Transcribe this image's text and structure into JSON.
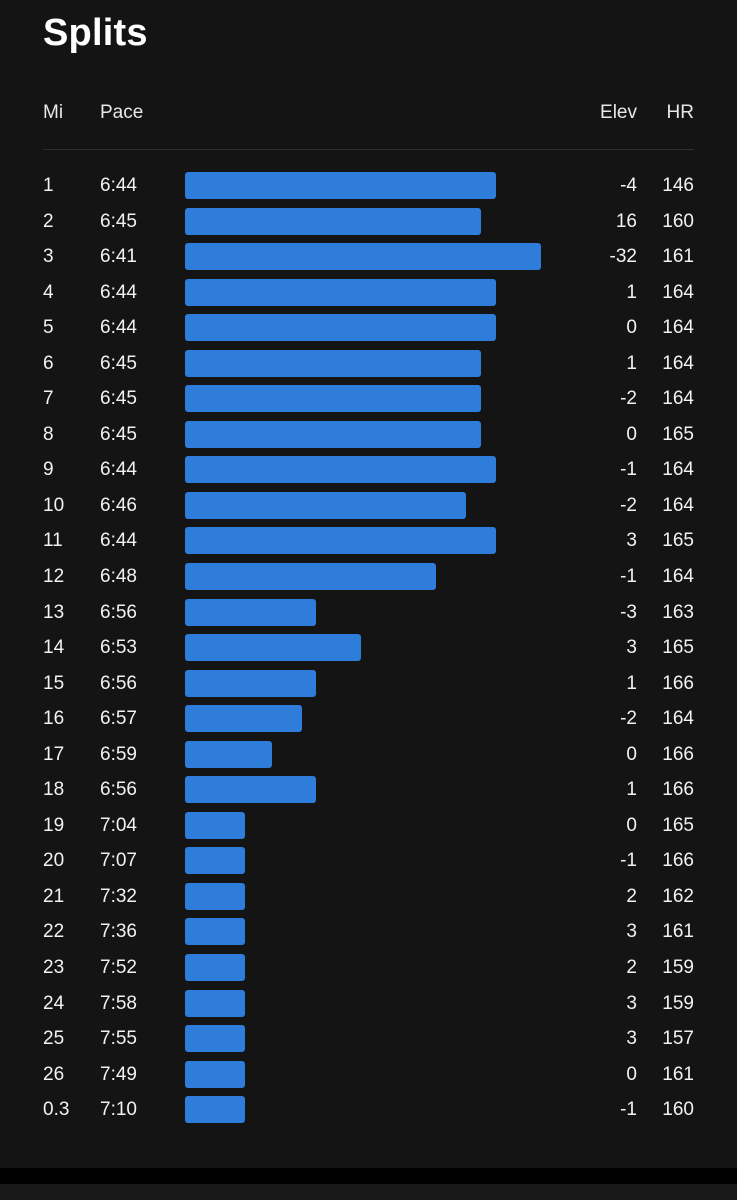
{
  "title": "Splits",
  "columns": {
    "mi": "Mi",
    "pace": "Pace",
    "elev": "Elev",
    "hr": "HR"
  },
  "colors": {
    "background": "#141414",
    "bar": "#2f7ddb",
    "text": "#ffffff"
  },
  "splits": [
    {
      "mi": "1",
      "pace": "6:44",
      "elev": "-4",
      "hr": "146"
    },
    {
      "mi": "2",
      "pace": "6:45",
      "elev": "16",
      "hr": "160"
    },
    {
      "mi": "3",
      "pace": "6:41",
      "elev": "-32",
      "hr": "161"
    },
    {
      "mi": "4",
      "pace": "6:44",
      "elev": "1",
      "hr": "164"
    },
    {
      "mi": "5",
      "pace": "6:44",
      "elev": "0",
      "hr": "164"
    },
    {
      "mi": "6",
      "pace": "6:45",
      "elev": "1",
      "hr": "164"
    },
    {
      "mi": "7",
      "pace": "6:45",
      "elev": "-2",
      "hr": "164"
    },
    {
      "mi": "8",
      "pace": "6:45",
      "elev": "0",
      "hr": "165"
    },
    {
      "mi": "9",
      "pace": "6:44",
      "elev": "-1",
      "hr": "164"
    },
    {
      "mi": "10",
      "pace": "6:46",
      "elev": "-2",
      "hr": "164"
    },
    {
      "mi": "11",
      "pace": "6:44",
      "elev": "3",
      "hr": "165"
    },
    {
      "mi": "12",
      "pace": "6:48",
      "elev": "-1",
      "hr": "164"
    },
    {
      "mi": "13",
      "pace": "6:56",
      "elev": "-3",
      "hr": "163"
    },
    {
      "mi": "14",
      "pace": "6:53",
      "elev": "3",
      "hr": "165"
    },
    {
      "mi": "15",
      "pace": "6:56",
      "elev": "1",
      "hr": "166"
    },
    {
      "mi": "16",
      "pace": "6:57",
      "elev": "-2",
      "hr": "164"
    },
    {
      "mi": "17",
      "pace": "6:59",
      "elev": "0",
      "hr": "166"
    },
    {
      "mi": "18",
      "pace": "6:56",
      "elev": "1",
      "hr": "166"
    },
    {
      "mi": "19",
      "pace": "7:04",
      "elev": "0",
      "hr": "165"
    },
    {
      "mi": "20",
      "pace": "7:07",
      "elev": "-1",
      "hr": "166"
    },
    {
      "mi": "21",
      "pace": "7:32",
      "elev": "2",
      "hr": "162"
    },
    {
      "mi": "22",
      "pace": "7:36",
      "elev": "3",
      "hr": "161"
    },
    {
      "mi": "23",
      "pace": "7:52",
      "elev": "2",
      "hr": "159"
    },
    {
      "mi": "24",
      "pace": "7:58",
      "elev": "3",
      "hr": "159"
    },
    {
      "mi": "25",
      "pace": "7:55",
      "elev": "3",
      "hr": "157"
    },
    {
      "mi": "26",
      "pace": "7:49",
      "elev": "0",
      "hr": "161"
    },
    {
      "mi": "0.3",
      "pace": "7:10",
      "elev": "-1",
      "hr": "160"
    }
  ]
}
